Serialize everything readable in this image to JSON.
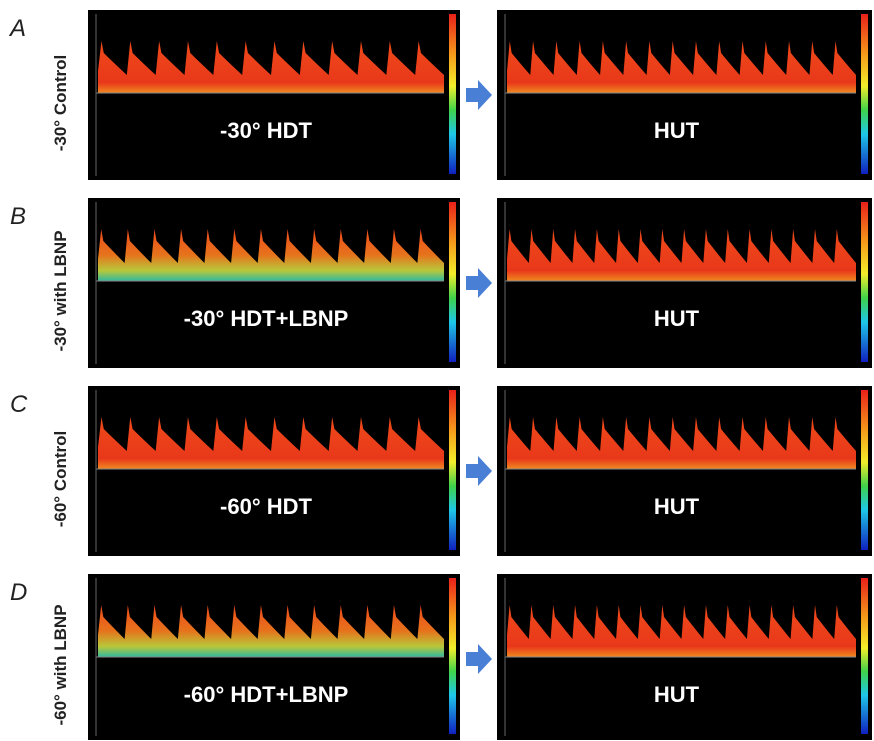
{
  "rows": [
    {
      "letter": "A",
      "side_label": "-30° Control",
      "left_label": "-30° HDT",
      "right_label": "HUT"
    },
    {
      "letter": "B",
      "side_label": "-30° with LBNP",
      "left_label": "-30° HDT+LBNP",
      "right_label": "HUT"
    },
    {
      "letter": "C",
      "side_label": "-60° Control",
      "left_label": "-60° HDT",
      "right_label": "HUT"
    },
    {
      "letter": "D",
      "side_label": "-60° with LBNP",
      "left_label": "-60° HDT+LBNP",
      "right_label": "HUT"
    }
  ]
}
